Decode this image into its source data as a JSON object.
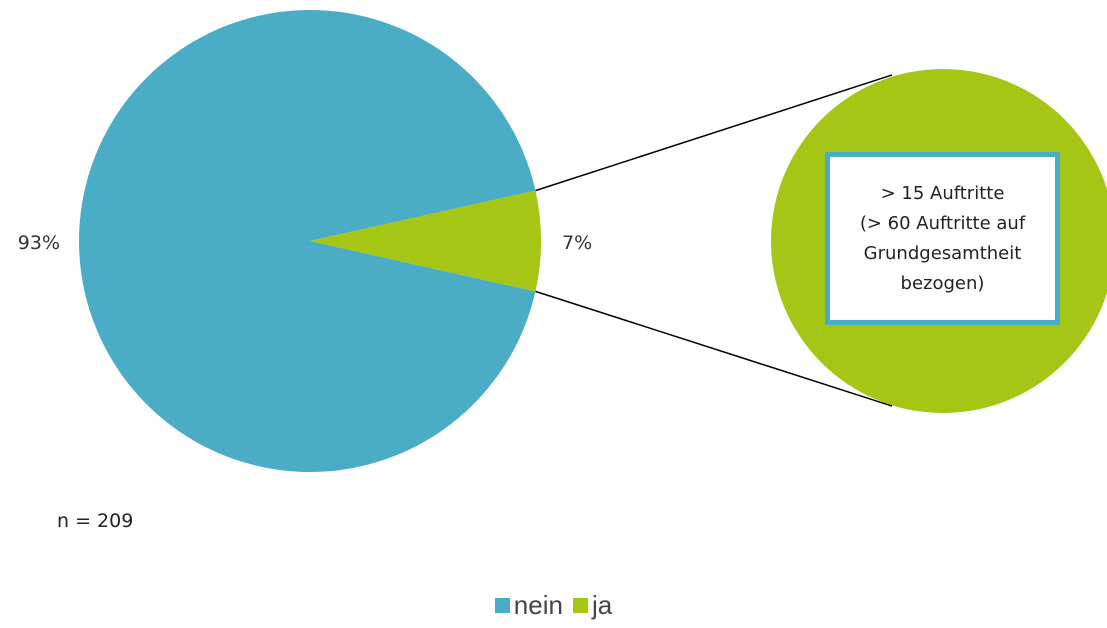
{
  "chart_data": {
    "type": "pie",
    "title": "",
    "categories": [
      "nein",
      "ja"
    ],
    "values": [
      93,
      7
    ],
    "value_labels": [
      "93%",
      "7%"
    ],
    "colors": [
      "#4BACC6",
      "#A5C614"
    ],
    "legend_position": "bottom",
    "sample_size_label": "n = 209",
    "callout": {
      "target": "ja",
      "lines": [
        "> 15 Auftritte",
        "(> 60 Auftritte auf",
        "Grundgesamtheit",
        "bezogen)"
      ]
    }
  },
  "legend": {
    "items": [
      {
        "label": "nein",
        "color": "#4BACC6"
      },
      {
        "label": "ja",
        "color": "#A5C614"
      }
    ]
  }
}
